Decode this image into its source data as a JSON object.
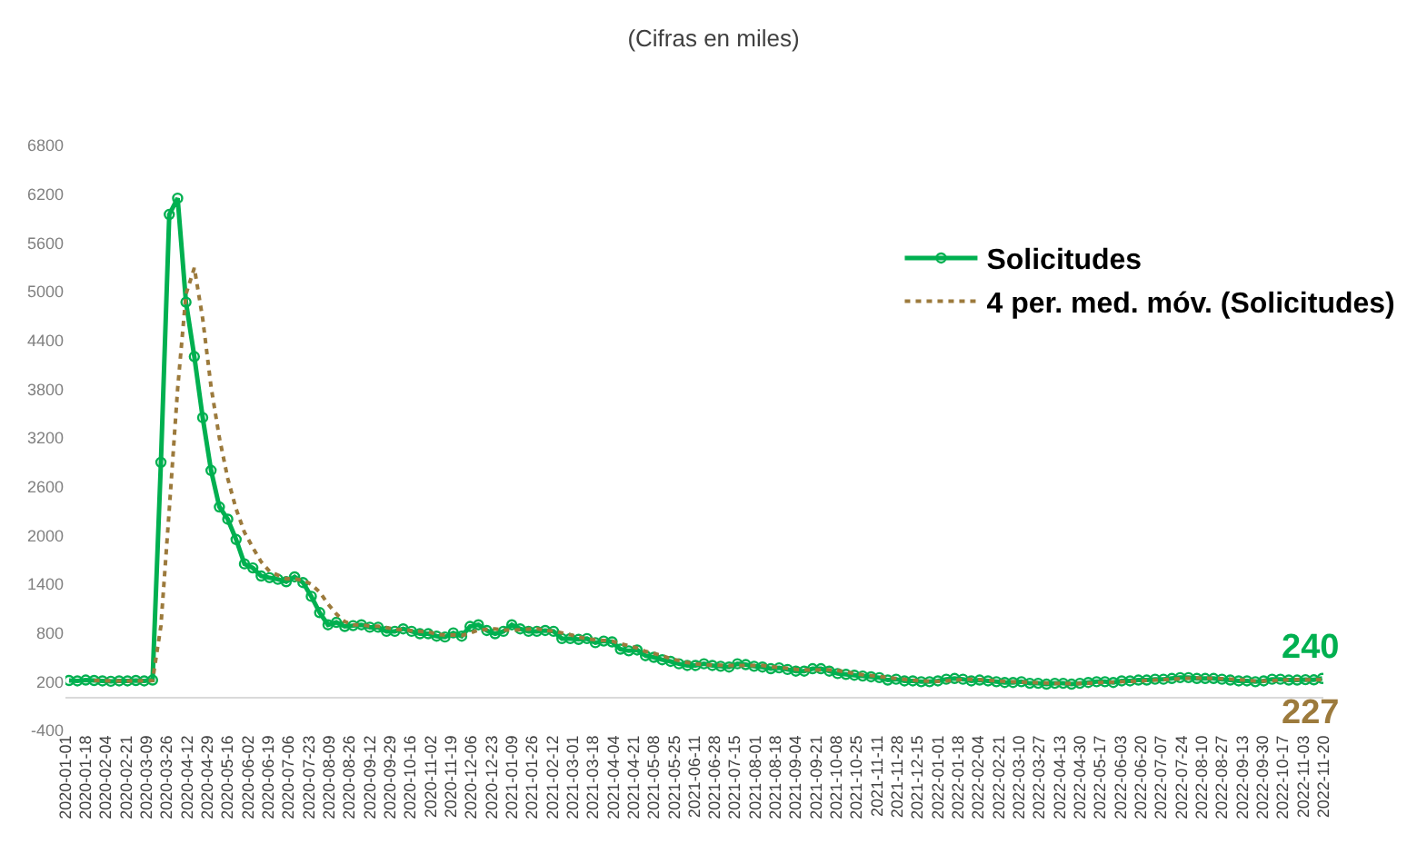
{
  "chart_data": {
    "type": "line",
    "title": "(Cifras en miles)",
    "x": [
      "2020-01-04",
      "2020-01-11",
      "2020-01-18",
      "2020-01-25",
      "2020-02-01",
      "2020-02-08",
      "2020-02-15",
      "2020-02-22",
      "2020-02-29",
      "2020-03-07",
      "2020-03-14",
      "2020-03-21",
      "2020-03-28",
      "2020-04-04",
      "2020-04-11",
      "2020-04-18",
      "2020-04-25",
      "2020-05-02",
      "2020-05-09",
      "2020-05-16",
      "2020-05-23",
      "2020-05-30",
      "2020-06-06",
      "2020-06-13",
      "2020-06-20",
      "2020-06-27",
      "2020-07-04",
      "2020-07-11",
      "2020-07-18",
      "2020-07-25",
      "2020-08-01",
      "2020-08-08",
      "2020-08-15",
      "2020-08-22",
      "2020-08-29",
      "2020-09-05",
      "2020-09-12",
      "2020-09-19",
      "2020-09-26",
      "2020-10-03",
      "2020-10-10",
      "2020-10-17",
      "2020-10-24",
      "2020-10-31",
      "2020-11-07",
      "2020-11-14",
      "2020-11-21",
      "2020-11-28",
      "2020-12-05",
      "2020-12-12",
      "2020-12-19",
      "2020-12-26",
      "2021-01-02",
      "2021-01-09",
      "2021-01-16",
      "2021-01-23",
      "2021-01-30",
      "2021-02-06",
      "2021-02-13",
      "2021-02-20",
      "2021-02-27",
      "2021-03-06",
      "2021-03-13",
      "2021-03-20",
      "2021-03-27",
      "2021-04-03",
      "2021-04-10",
      "2021-04-17",
      "2021-04-24",
      "2021-05-01",
      "2021-05-08",
      "2021-05-15",
      "2021-05-22",
      "2021-05-29",
      "2021-06-05",
      "2021-06-12",
      "2021-06-19",
      "2021-06-26",
      "2021-07-03",
      "2021-07-10",
      "2021-07-17",
      "2021-07-24",
      "2021-07-31",
      "2021-08-07",
      "2021-08-14",
      "2021-08-21",
      "2021-08-28",
      "2021-09-04",
      "2021-09-11",
      "2021-09-18",
      "2021-09-25",
      "2021-10-02",
      "2021-10-09",
      "2021-10-16",
      "2021-10-23",
      "2021-10-30",
      "2021-11-06",
      "2021-11-13",
      "2021-11-20",
      "2021-11-27",
      "2021-12-04",
      "2021-12-11",
      "2021-12-18",
      "2021-12-25",
      "2022-01-01",
      "2022-01-08",
      "2022-01-15",
      "2022-01-22",
      "2022-01-29",
      "2022-02-05",
      "2022-02-12",
      "2022-02-19",
      "2022-02-26",
      "2022-03-05",
      "2022-03-12",
      "2022-03-19",
      "2022-03-26",
      "2022-04-02",
      "2022-04-09",
      "2022-04-16",
      "2022-04-23",
      "2022-04-30",
      "2022-05-07",
      "2022-05-14",
      "2022-05-21",
      "2022-05-28",
      "2022-06-04",
      "2022-06-11",
      "2022-06-18",
      "2022-06-25",
      "2022-07-02",
      "2022-07-09",
      "2022-07-16",
      "2022-07-23",
      "2022-07-30",
      "2022-08-06",
      "2022-08-13",
      "2022-08-20",
      "2022-08-27",
      "2022-09-03",
      "2022-09-10",
      "2022-09-17",
      "2022-09-24",
      "2022-10-01",
      "2022-10-08",
      "2022-10-15",
      "2022-10-22",
      "2022-10-29",
      "2022-11-05",
      "2022-11-12",
      "2022-11-19"
    ],
    "series": [
      {
        "name": "Solicitudes",
        "color": "#00b050",
        "marker": "circle",
        "values": [
          215,
          210,
          220,
          215,
          210,
          205,
          210,
          210,
          215,
          210,
          220,
          2900,
          5950,
          6150,
          4870,
          4200,
          3450,
          2800,
          2350,
          2200,
          1950,
          1650,
          1600,
          1500,
          1480,
          1460,
          1430,
          1490,
          1420,
          1250,
          1050,
          900,
          930,
          880,
          890,
          900,
          870,
          870,
          820,
          820,
          850,
          820,
          790,
          790,
          760,
          750,
          800,
          760,
          880,
          900,
          830,
          790,
          820,
          900,
          850,
          820,
          820,
          830,
          820,
          730,
          730,
          720,
          730,
          680,
          700,
          690,
          600,
          580,
          590,
          520,
          500,
          470,
          450,
          420,
          400,
          400,
          420,
          400,
          390,
          380,
          420,
          410,
          390,
          380,
          360,
          370,
          350,
          330,
          330,
          360,
          360,
          330,
          300,
          290,
          280,
          270,
          260,
          250,
          220,
          230,
          210,
          210,
          200,
          200,
          210,
          230,
          240,
          230,
          210,
          220,
          210,
          200,
          190,
          190,
          200,
          180,
          180,
          170,
          180,
          180,
          170,
          180,
          190,
          200,
          200,
          190,
          210,
          210,
          220,
          220,
          230,
          230,
          240,
          250,
          250,
          240,
          240,
          240,
          230,
          220,
          210,
          210,
          200,
          210,
          230,
          230,
          220,
          220,
          225,
          223,
          240
        ]
      },
      {
        "name": "4 per. med. móv. (Solicitudes)",
        "color": "#9c7a3c",
        "marker": "none",
        "line_style": "dotted",
        "values": [
          null,
          null,
          null,
          215,
          214,
          210,
          208,
          209,
          210,
          211,
          214,
          886,
          2320,
          3804,
          4968,
          5293,
          4668,
          3830,
          3200,
          2700,
          2325,
          2038,
          1850,
          1675,
          1558,
          1510,
          1468,
          1465,
          1450,
          1398,
          1303,
          1155,
          1033,
          940,
          900,
          900,
          885,
          883,
          865,
          845,
          840,
          828,
          820,
          813,
          783,
          773,
          775,
          768,
          798,
          835,
          843,
          850,
          835,
          835,
          840,
          848,
          853,
          830,
          823,
          800,
          778,
          750,
          728,
          715,
          708,
          700,
          668,
          643,
          615,
          573,
          548,
          520,
          485,
          460,
          435,
          418,
          410,
          405,
          403,
          398,
          398,
          400,
          400,
          400,
          385,
          375,
          365,
          353,
          345,
          343,
          345,
          345,
          338,
          320,
          300,
          285,
          275,
          265,
          250,
          240,
          228,
          218,
          213,
          205,
          205,
          210,
          220,
          228,
          228,
          225,
          218,
          210,
          205,
          198,
          195,
          190,
          188,
          183,
          178,
          178,
          175,
          178,
          180,
          185,
          193,
          195,
          200,
          203,
          208,
          215,
          220,
          225,
          230,
          238,
          243,
          245,
          243,
          240,
          238,
          233,
          225,
          218,
          208,
          208,
          213,
          218,
          223,
          225,
          224,
          222,
          227
        ]
      }
    ],
    "ylim": [
      -400,
      6800
    ],
    "yticks": [
      -400,
      200,
      800,
      1400,
      2000,
      2600,
      3200,
      3800,
      4400,
      5000,
      5600,
      6200,
      6800
    ],
    "xlim": [
      "2020-01-01",
      "2022-11-20"
    ],
    "xticks": [
      "2020-01-01",
      "2020-01-18",
      "2020-02-04",
      "2020-02-21",
      "2020-03-09",
      "2020-03-26",
      "2020-04-12",
      "2020-04-29",
      "2020-05-16",
      "2020-06-02",
      "2020-06-19",
      "2020-07-06",
      "2020-07-23",
      "2020-08-09",
      "2020-08-26",
      "2020-09-12",
      "2020-09-29",
      "2020-10-16",
      "2020-11-02",
      "2020-11-19",
      "2020-12-06",
      "2020-12-23",
      "2021-01-09",
      "2021-01-26",
      "2021-02-12",
      "2021-03-01",
      "2021-03-18",
      "2021-04-04",
      "2021-04-21",
      "2021-05-08",
      "2021-05-25",
      "2021-06-11",
      "2021-06-28",
      "2021-07-15",
      "2021-08-01",
      "2021-08-18",
      "2021-09-04",
      "2021-09-21",
      "2021-10-08",
      "2021-10-25",
      "2021-11-11",
      "2021-11-28",
      "2021-12-15",
      "2022-01-01",
      "2022-01-18",
      "2022-02-04",
      "2022-02-21",
      "2022-03-10",
      "2022-03-27",
      "2022-04-13",
      "2022-04-30",
      "2022-05-17",
      "2022-06-03",
      "2022-06-20",
      "2022-07-07",
      "2022-07-24",
      "2022-08-10",
      "2022-08-27",
      "2022-09-13",
      "2022-09-30",
      "2022-10-17",
      "2022-11-03",
      "2022-11-20"
    ],
    "annotations": [
      {
        "text": "240",
        "x": "2022-11-19",
        "y": 240
      },
      {
        "text": "227",
        "x": "2022-11-19",
        "y": 227
      }
    ],
    "grid": false,
    "legend": "top right"
  }
}
